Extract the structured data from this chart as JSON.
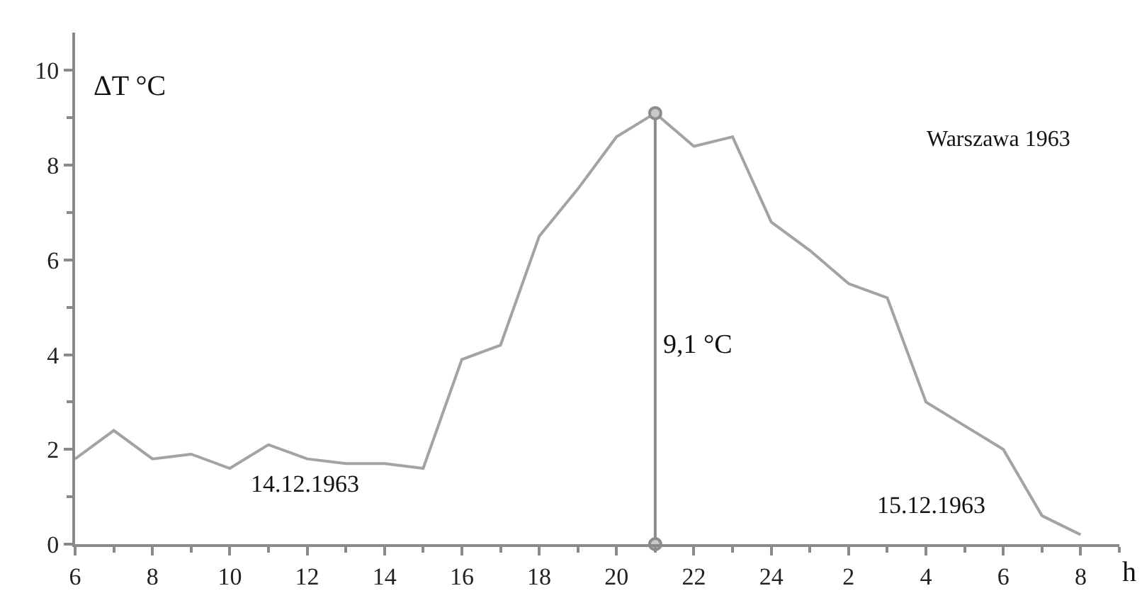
{
  "chart_data": {
    "type": "line",
    "title": "Warszawa 1963",
    "xlabel": "h",
    "ylabel": "ΔT °C",
    "x": [
      "1963-12-14T06:00",
      "1963-12-14T07:00",
      "1963-12-14T08:00",
      "1963-12-14T09:00",
      "1963-12-14T10:00",
      "1963-12-14T11:00",
      "1963-12-14T12:00",
      "1963-12-14T13:00",
      "1963-12-14T14:00",
      "1963-12-14T15:00",
      "1963-12-14T16:00",
      "1963-12-14T17:00",
      "1963-12-14T18:00",
      "1963-12-14T19:00",
      "1963-12-14T20:00",
      "1963-12-14T21:00",
      "1963-12-14T22:00",
      "1963-12-14T23:00",
      "1963-12-15T00:00",
      "1963-12-15T01:00",
      "1963-12-15T02:00",
      "1963-12-15T03:00",
      "1963-12-15T04:00",
      "1963-12-15T05:00",
      "1963-12-15T06:00",
      "1963-12-15T07:00",
      "1963-12-15T08:00"
    ],
    "series": [
      {
        "color": "#a3a3a3",
        "marker": "none",
        "values": [
          1.8,
          2.4,
          1.8,
          1.9,
          1.6,
          2.1,
          1.8,
          1.7,
          1.7,
          1.6,
          3.9,
          4.2,
          6.5,
          7.5,
          8.6,
          9.1,
          8.4,
          8.6,
          6.8,
          6.2,
          5.5,
          5.2,
          3.0,
          2.5,
          2.0,
          0.6,
          0.2
        ]
      },
      {
        "color": "#8c8c8c",
        "marker": "circle",
        "x": [
          "1963-12-14T21:00",
          "1963-12-14T21:00"
        ],
        "values": [
          0,
          9.1
        ]
      }
    ],
    "annotations": [
      {
        "text": "9,1 °C",
        "x": "1963-12-14T21:00",
        "y": 4.2
      },
      "14.12.1963",
      "15.12.1963"
    ],
    "xlim": [
      "1963-12-14T06:00",
      "1963-12-15T09:00"
    ],
    "ylim": [
      0,
      10.8
    ],
    "xticks": [
      {
        "value": "1963-12-14T06:00",
        "label": "6"
      },
      {
        "value": "1963-12-14T08:00",
        "label": "8"
      },
      {
        "value": "1963-12-14T10:00",
        "label": "10"
      },
      {
        "value": "1963-12-14T12:00",
        "label": "12"
      },
      {
        "value": "1963-12-14T14:00",
        "label": "14"
      },
      {
        "value": "1963-12-14T16:00",
        "label": "16"
      },
      {
        "value": "1963-12-14T18:00",
        "label": "18"
      },
      {
        "value": "1963-12-14T20:00",
        "label": "20"
      },
      {
        "value": "1963-12-14T22:00",
        "label": "22"
      },
      {
        "value": "1963-12-15T00:00",
        "label": "24"
      },
      {
        "value": "1963-12-15T02:00",
        "label": "2"
      },
      {
        "value": "1963-12-15T04:00",
        "label": "4"
      },
      {
        "value": "1963-12-15T06:00",
        "label": "6"
      },
      {
        "value": "1963-12-15T08:00",
        "label": "8"
      }
    ],
    "yticks": [
      0,
      2,
      4,
      6,
      8,
      10
    ],
    "grid": false,
    "line_style": "solid"
  }
}
